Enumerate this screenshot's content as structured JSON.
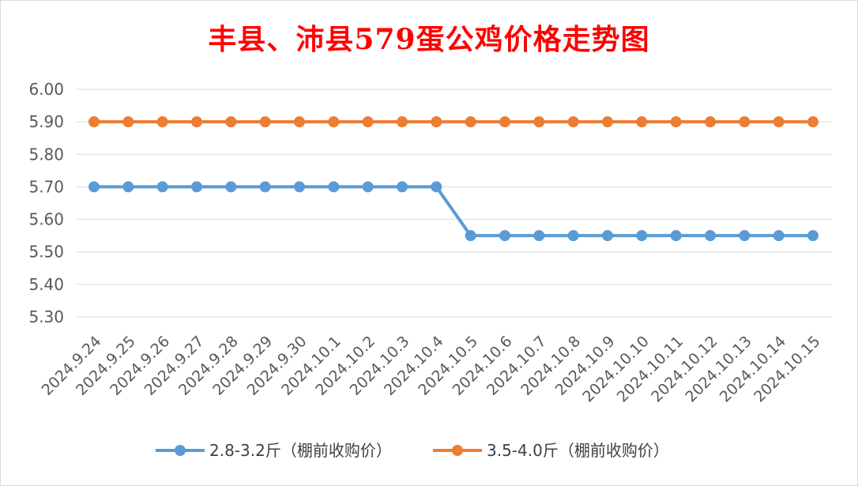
{
  "chart_data": {
    "type": "line",
    "title": "丰县、沛县579蛋公鸡价格走势图",
    "categories": [
      "2024.9.24",
      "2024.9.25",
      "2024.9.26",
      "2024.9.27",
      "2024.9.28",
      "2024.9.29",
      "2024.9.30",
      "2024.10.1",
      "2024.10.2",
      "2024.10.3",
      "2024.10.4",
      "2024.10.5",
      "2024.10.6",
      "2024.10.7",
      "2024.10.8",
      "2024.10.9",
      "2024.10.10",
      "2024.10.11",
      "2024.10.12",
      "2024.10.13",
      "2024.10.14",
      "2024.10.15"
    ],
    "series": [
      {
        "name": "2.8-3.2斤（棚前收购价）",
        "color": "#5b9bd5",
        "values": [
          5.7,
          5.7,
          5.7,
          5.7,
          5.7,
          5.7,
          5.7,
          5.7,
          5.7,
          5.7,
          5.7,
          5.55,
          5.55,
          5.55,
          5.55,
          5.55,
          5.55,
          5.55,
          5.55,
          5.55,
          5.55,
          5.55
        ]
      },
      {
        "name": "3.5-4.0斤（棚前收购价）",
        "color": "#ed7d31",
        "values": [
          5.9,
          5.9,
          5.9,
          5.9,
          5.9,
          5.9,
          5.9,
          5.9,
          5.9,
          5.9,
          5.9,
          5.9,
          5.9,
          5.9,
          5.9,
          5.9,
          5.9,
          5.9,
          5.9,
          5.9,
          5.9,
          5.9
        ]
      }
    ],
    "yticks": [
      "5.30",
      "5.40",
      "5.50",
      "5.60",
      "5.70",
      "5.80",
      "5.90",
      "6.00"
    ],
    "ylim": [
      5.3,
      6.0
    ],
    "grid": true,
    "legend_position": "bottom",
    "xlabel": "",
    "ylabel": ""
  }
}
